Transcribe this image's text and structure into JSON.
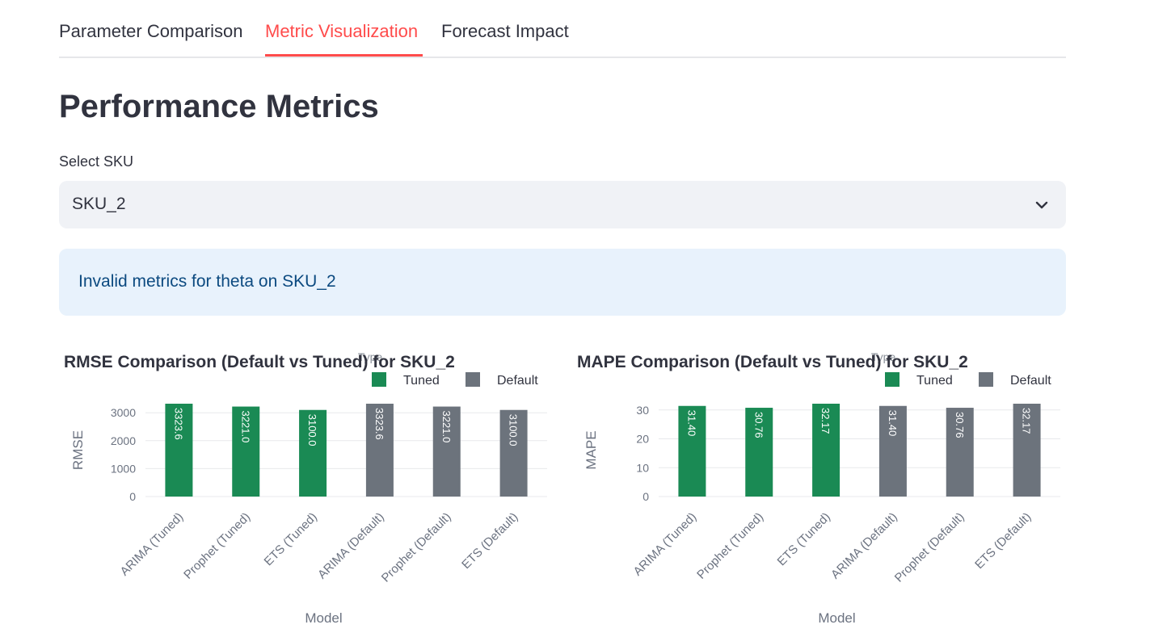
{
  "tabs": [
    {
      "label": "Parameter Comparison"
    },
    {
      "label": "Metric Visualization"
    },
    {
      "label": "Forecast Impact"
    }
  ],
  "page_title": "Performance Metrics",
  "sku_select": {
    "label": "Select SKU",
    "value": "SKU_2"
  },
  "alert": {
    "text": "Invalid metrics for theta on SKU_2"
  },
  "colors": {
    "tuned": "#1a8a54",
    "default": "#6c737c",
    "accent": "#ff4b4b"
  },
  "chart_data": [
    {
      "type": "bar",
      "title": "RMSE Comparison (Default vs Tuned) for SKU_2",
      "xlabel": "Model",
      "ylabel": "RMSE",
      "legend_title": "Type",
      "legend": [
        "Tuned",
        "Default"
      ],
      "categories": [
        "ARIMA (Tuned)",
        "Prophet (Tuned)",
        "ETS (Tuned)",
        "ARIMA (Default)",
        "Prophet (Default)",
        "ETS (Default)"
      ],
      "values": [
        3323.6,
        3221.0,
        3100.0,
        3323.6,
        3221.0,
        3100.0
      ],
      "value_labels": [
        "3323.6",
        "3221.0",
        "3100.0",
        "3323.6",
        "3221.0",
        "3100.0"
      ],
      "series_of_bar": [
        "Tuned",
        "Tuned",
        "Tuned",
        "Default",
        "Default",
        "Default"
      ],
      "yticks": [
        0,
        1000,
        2000,
        3000
      ],
      "ylim": [
        0,
        3323.6
      ]
    },
    {
      "type": "bar",
      "title": "MAPE Comparison (Default vs Tuned) for SKU_2",
      "xlabel": "Model",
      "ylabel": "MAPE",
      "legend_title": "Type",
      "legend": [
        "Tuned",
        "Default"
      ],
      "categories": [
        "ARIMA (Tuned)",
        "Prophet (Tuned)",
        "ETS (Tuned)",
        "ARIMA (Default)",
        "Prophet (Default)",
        "ETS (Default)"
      ],
      "values": [
        31.4,
        30.76,
        32.17,
        31.4,
        30.76,
        32.17
      ],
      "value_labels": [
        "31.40",
        "30.76",
        "32.17",
        "31.40",
        "30.76",
        "32.17"
      ],
      "series_of_bar": [
        "Tuned",
        "Tuned",
        "Tuned",
        "Default",
        "Default",
        "Default"
      ],
      "yticks": [
        0,
        10,
        20,
        30
      ],
      "ylim": [
        0,
        32.17
      ]
    }
  ]
}
